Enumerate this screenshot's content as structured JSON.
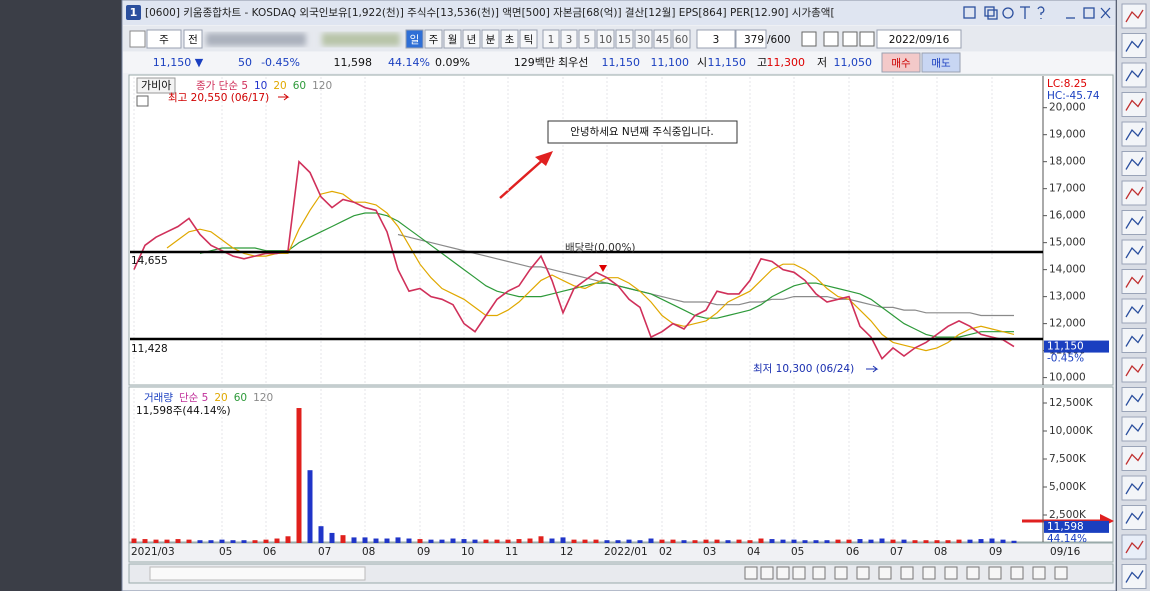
{
  "window": {
    "badge": "1",
    "title": "[0600] 키움종합차트 - KOSDAQ 외국인보유[1,922(천)] 주식수[13,536(천)] 액면[500] 자본금[68(억)] 결산[12월] EPS[864] PER[12.90] 시가총액[",
    "toolbar": {
      "market": "주",
      "prev": "전",
      "periods": [
        "일",
        "주",
        "월",
        "년",
        "분",
        "초",
        "틱"
      ],
      "minutes": [
        "1",
        "3",
        "5",
        "10",
        "15",
        "30",
        "45",
        "60"
      ],
      "count_select": "3",
      "count": "379",
      "count_max": "/600",
      "date": "2022/09/16"
    },
    "quote": {
      "price": "11,150 ▼",
      "change": "50",
      "change_pct": "-0.45%",
      "volume": "11,598",
      "volume_pct": "44.14%",
      "turnover": "0.09%",
      "amount": "129백만",
      "best_label": "최우선",
      "ask": "11,150",
      "bid": "11,100",
      "open_label": "시",
      "open": "11,150",
      "high_label": "고",
      "high": "11,300",
      "low_label": "저",
      "low": "11,050",
      "buy": "매수",
      "sell": "매도"
    }
  },
  "chart_data": [
    {
      "type": "line",
      "stock_name": "가비아",
      "categories": [
        "2021/03",
        null,
        null,
        null,
        null,
        null,
        null,
        null,
        "05",
        null,
        null,
        null,
        "06",
        null,
        null,
        null,
        null,
        "07",
        null,
        null,
        null,
        "08",
        null,
        null,
        null,
        null,
        "09",
        null,
        null,
        null,
        "10",
        null,
        null,
        null,
        "11",
        null,
        null,
        null,
        null,
        "12",
        null,
        null,
        null,
        "2022/01",
        null,
        null,
        null,
        null,
        "02",
        null,
        null,
        null,
        "03",
        null,
        null,
        null,
        "04",
        null,
        null,
        null,
        "05",
        null,
        null,
        null,
        null,
        "06",
        null,
        null,
        null,
        "07",
        null,
        null,
        null,
        "08",
        null,
        null,
        null,
        null,
        "09",
        null,
        null
      ],
      "date_label": "09/16",
      "ylim": [
        9800,
        21100
      ],
      "yticks": [
        {
          "value": 10000,
          "label": "10,000"
        },
        {
          "value": 11000,
          "label": "11,000"
        },
        {
          "value": 12000,
          "label": "12,000"
        },
        {
          "value": 13000,
          "label": "13,000"
        },
        {
          "value": 14000,
          "label": "14,000"
        },
        {
          "value": 15000,
          "label": "15,000"
        },
        {
          "value": 16000,
          "label": "16,000"
        },
        {
          "value": 17000,
          "label": "17,000"
        },
        {
          "value": 18000,
          "label": "18,000"
        },
        {
          "value": 19000,
          "label": "19,000"
        },
        {
          "value": 20000,
          "label": "20,000"
        }
      ],
      "grid": true,
      "extra_legend": [
        {
          "label": "10",
          "color": "#2233cc"
        }
      ],
      "series": [
        {
          "name": "종가 단순 5",
          "color": "#d0305a",
          "values": [
            14000,
            14900,
            15200,
            15400,
            15600,
            15900,
            15300,
            14900,
            14700,
            14500,
            14400,
            14500,
            14600,
            14600,
            14700,
            18000,
            17600,
            16700,
            16300,
            16600,
            16500,
            16300,
            16200,
            15400,
            14000,
            13200,
            13300,
            13000,
            12900,
            12700,
            12000,
            11700,
            12300,
            12900,
            13200,
            13400,
            14000,
            14500,
            13600,
            12400,
            13300,
            13600,
            13900,
            13700,
            13400,
            12900,
            12600,
            11500,
            11700,
            12000,
            11800,
            12300,
            12500,
            13200,
            13100,
            13100,
            13600,
            14400,
            14300,
            14000,
            13900,
            13600,
            13100,
            12800,
            12900,
            13000,
            11900,
            11500,
            10700,
            11100,
            10800,
            11100,
            11300,
            11600,
            11900,
            12100,
            11900,
            11600,
            11500,
            11400,
            11150
          ]
        },
        {
          "name": "20",
          "color": "#e0a800",
          "values": [
            null,
            null,
            null,
            14800,
            15100,
            15400,
            15500,
            15400,
            15100,
            14800,
            14600,
            14500,
            14500,
            14600,
            14600,
            15500,
            16200,
            16800,
            16900,
            16800,
            16500,
            16500,
            16400,
            16100,
            15600,
            14900,
            14200,
            13700,
            13300,
            13100,
            12900,
            12600,
            12300,
            12300,
            12500,
            12800,
            13200,
            13600,
            13800,
            13600,
            13400,
            13300,
            13500,
            13700,
            13700,
            13500,
            13200,
            12800,
            12300,
            12000,
            11900,
            12000,
            12100,
            12400,
            12800,
            13000,
            13200,
            13600,
            14000,
            14200,
            14200,
            14000,
            13700,
            13300,
            13000,
            12900,
            12500,
            12100,
            11600,
            11300,
            11200,
            11100,
            11000,
            11100,
            11300,
            11600,
            11800,
            11900,
            11800,
            11700,
            11600
          ]
        },
        {
          "name": "60",
          "color": "#2e9a3a",
          "values": [
            null,
            null,
            null,
            null,
            null,
            null,
            14600,
            14700,
            14800,
            14800,
            14800,
            14800,
            14700,
            14700,
            14700,
            15000,
            15200,
            15400,
            15600,
            15800,
            16000,
            16100,
            16100,
            16000,
            15800,
            15500,
            15200,
            14900,
            14600,
            14300,
            14000,
            13700,
            13400,
            13200,
            13100,
            13000,
            13000,
            13000,
            13100,
            13200,
            13300,
            13400,
            13500,
            13500,
            13400,
            13300,
            13200,
            13100,
            12900,
            12700,
            12500,
            12300,
            12200,
            12200,
            12300,
            12400,
            12500,
            12700,
            13000,
            13200,
            13400,
            13500,
            13500,
            13400,
            13300,
            13200,
            13100,
            12900,
            12600,
            12300,
            12000,
            11800,
            11600,
            11500,
            11500,
            11500,
            11600,
            11700,
            11700,
            11700,
            11700
          ]
        },
        {
          "name": "120",
          "color": "#8a8a8a",
          "values": [
            null,
            null,
            null,
            null,
            null,
            null,
            null,
            null,
            null,
            null,
            null,
            null,
            null,
            null,
            null,
            null,
            null,
            null,
            null,
            null,
            null,
            null,
            null,
            null,
            15300,
            15200,
            15100,
            15000,
            14900,
            14800,
            14700,
            14600,
            14500,
            14400,
            14300,
            14200,
            14100,
            14100,
            14000,
            13900,
            13800,
            13700,
            13600,
            13500,
            13400,
            13300,
            13200,
            13100,
            13000,
            12900,
            12800,
            12800,
            12800,
            12700,
            12700,
            12700,
            12800,
            12800,
            12900,
            12900,
            13000,
            13000,
            13000,
            13000,
            12900,
            12900,
            12800,
            12700,
            12600,
            12600,
            12500,
            12500,
            12400,
            12400,
            12400,
            12400,
            12400,
            12300,
            12300,
            12300,
            12300
          ]
        }
      ],
      "hlines": [
        {
          "value": 14655,
          "label": "14,655"
        },
        {
          "value": 11428,
          "label": "11,428"
        }
      ],
      "annotations": [
        {
          "text": "최고 20,550 (06/17)",
          "color": "#d00000"
        },
        {
          "text": "최저 10,300 (06/24)",
          "color": "#1a2fb0"
        },
        {
          "text": "배당락(0.00%)",
          "color": "#333333"
        },
        {
          "text": "안녕하세요 N년째 주식중입니다.",
          "color": "#111111"
        }
      ],
      "lc": "LC:8.25",
      "hc": "HC:-45.74",
      "last": {
        "value": 11150,
        "label": "11,150",
        "change": "-0.45%"
      }
    },
    {
      "type": "bar",
      "title": "거래량",
      "ma_labels": [
        {
          "label": "단순 5",
          "color": "#c0309a"
        },
        {
          "label": "20",
          "color": "#e0a800"
        },
        {
          "label": "60",
          "color": "#2e9a3a"
        },
        {
          "label": "120",
          "color": "#8a8a8a"
        }
      ],
      "current": "11,598주(44.14%)",
      "up_color": "#e0201c",
      "down_color": "#2035c8",
      "ylim": [
        0,
        13660
      ],
      "yticks": [
        {
          "value": 2500,
          "label": "2,500K"
        },
        {
          "value": 5000,
          "label": "5,000K"
        },
        {
          "value": 7500,
          "label": "7,500K"
        },
        {
          "value": 10000,
          "label": "10,000K"
        },
        {
          "value": 12500,
          "label": "12,500K"
        }
      ],
      "values": [
        400,
        350,
        300,
        300,
        350,
        300,
        250,
        250,
        300,
        250,
        250,
        250,
        300,
        400,
        600,
        12050,
        6500,
        1500,
        900,
        700,
        500,
        500,
        400,
        400,
        500,
        400,
        350,
        300,
        300,
        400,
        350,
        300,
        300,
        300,
        300,
        350,
        400,
        600,
        400,
        500,
        300,
        300,
        300,
        250,
        250,
        300,
        250,
        400,
        300,
        300,
        250,
        250,
        300,
        300,
        250,
        300,
        250,
        400,
        350,
        300,
        300,
        250,
        250,
        250,
        300,
        300,
        350,
        300,
        400,
        300,
        300,
        250,
        250,
        250,
        250,
        300,
        300,
        350,
        400,
        300,
        200
      ],
      "last": {
        "value": 11.598,
        "label": "11,598",
        "pct": "44.14%"
      }
    }
  ]
}
